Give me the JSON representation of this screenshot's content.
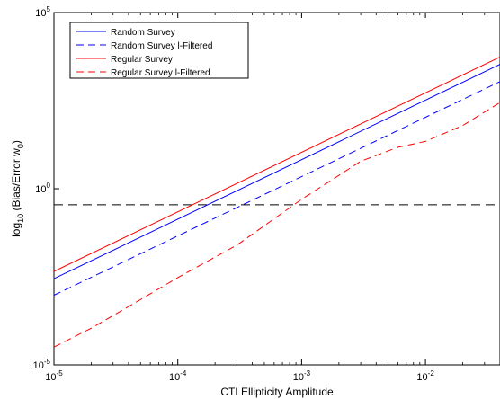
{
  "chart_data": {
    "type": "line",
    "xlabel": "CTI Ellipticity Amplitude",
    "ylabel_main": "log",
    "ylabel_sub": "10",
    "ylabel_rest": " (Bias/Error w",
    "ylabel_sub2": "0",
    "ylabel_end": ")",
    "x_scale": "log",
    "y_scale": "log",
    "xlim": [
      1e-05,
      0.04
    ],
    "ylim": [
      1e-05,
      100000
    ],
    "x_ticks": [
      {
        "value": 1e-05,
        "base": "10",
        "exp": "-5"
      },
      {
        "value": 0.0001,
        "base": "10",
        "exp": "-4"
      },
      {
        "value": 0.001,
        "base": "10",
        "exp": "-3"
      },
      {
        "value": 0.01,
        "base": "10",
        "exp": "-2"
      }
    ],
    "y_ticks": [
      {
        "value": 1e-05,
        "base": "10",
        "exp": "-5"
      },
      {
        "value": 1,
        "base": "10",
        "exp": "0"
      },
      {
        "value": 100000,
        "base": "10",
        "exp": "5"
      }
    ],
    "hline": {
      "value": 0.35,
      "color": "#000000",
      "style": "dashed"
    },
    "legend_position": "top-left",
    "series": [
      {
        "name": "Random Survey",
        "color": "#0000ff",
        "style": "solid",
        "x": [
          1e-05,
          0.04
        ],
        "y": [
          0.0028,
          3400
        ]
      },
      {
        "name": "Random Survey l-Filtered",
        "color": "#0000ff",
        "style": "dashed",
        "x": [
          1e-05,
          0.04
        ],
        "y": [
          0.00095,
          1100
        ]
      },
      {
        "name": "Regular Survey",
        "color": "#ff0000",
        "style": "solid",
        "x": [
          1e-05,
          0.04
        ],
        "y": [
          0.0045,
          5500
        ]
      },
      {
        "name": "Regular Survey l-Filtered",
        "color": "#ff0000",
        "style": "dashed",
        "x": [
          1e-05,
          2e-05,
          4e-05,
          0.0001,
          0.0003,
          0.001,
          0.003,
          0.006,
          0.01,
          0.02,
          0.04
        ],
        "y": [
          3.2e-05,
          0.00011,
          0.00045,
          0.003,
          0.025,
          0.5,
          6,
          15,
          22,
          62,
          280
        ]
      }
    ]
  }
}
